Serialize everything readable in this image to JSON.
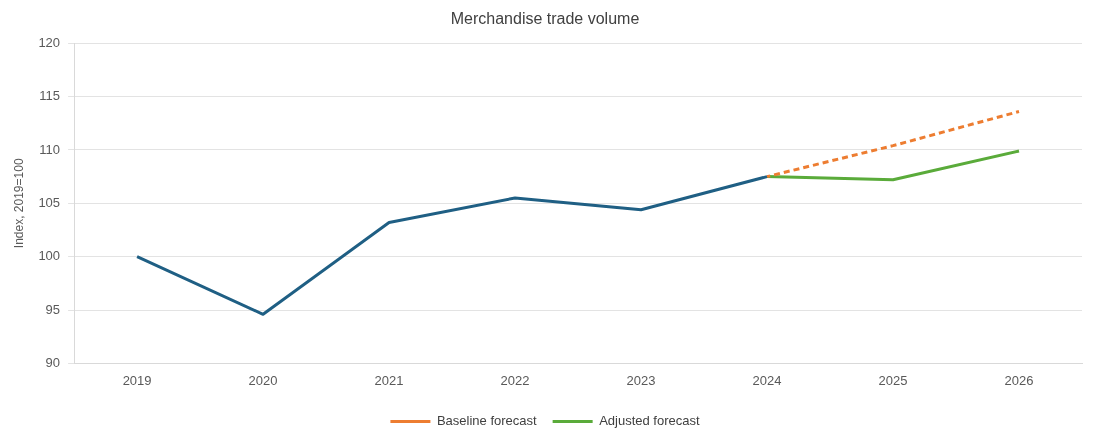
{
  "chart_data": {
    "type": "line",
    "title": "Merchandise trade volume",
    "ylabel": "Index, 2019=100",
    "categories": [
      "2019",
      "2020",
      "2021",
      "2022",
      "2023",
      "2024",
      "2025",
      "2026"
    ],
    "series": [
      {
        "color": "#1f5f84",
        "values": [
          100,
          94.6,
          103.2,
          105.5,
          104.4,
          107.5,
          null,
          null
        ]
      },
      {
        "name": "Baseline forecast",
        "color": "#ed7d31",
        "line_style": "dashed",
        "values": [
          null,
          null,
          null,
          null,
          null,
          107.5,
          110.4,
          113.6
        ]
      },
      {
        "name": "Adjusted forecast",
        "color": "#5aab3a",
        "values": [
          null,
          null,
          null,
          null,
          null,
          107.5,
          107.2,
          109.9
        ]
      }
    ],
    "ylim": [
      90,
      120
    ],
    "yticks": [
      90,
      95,
      100,
      105,
      110,
      115,
      120
    ],
    "grid": "y",
    "legend": "bottom",
    "marker": "none",
    "line_style": "solid"
  }
}
